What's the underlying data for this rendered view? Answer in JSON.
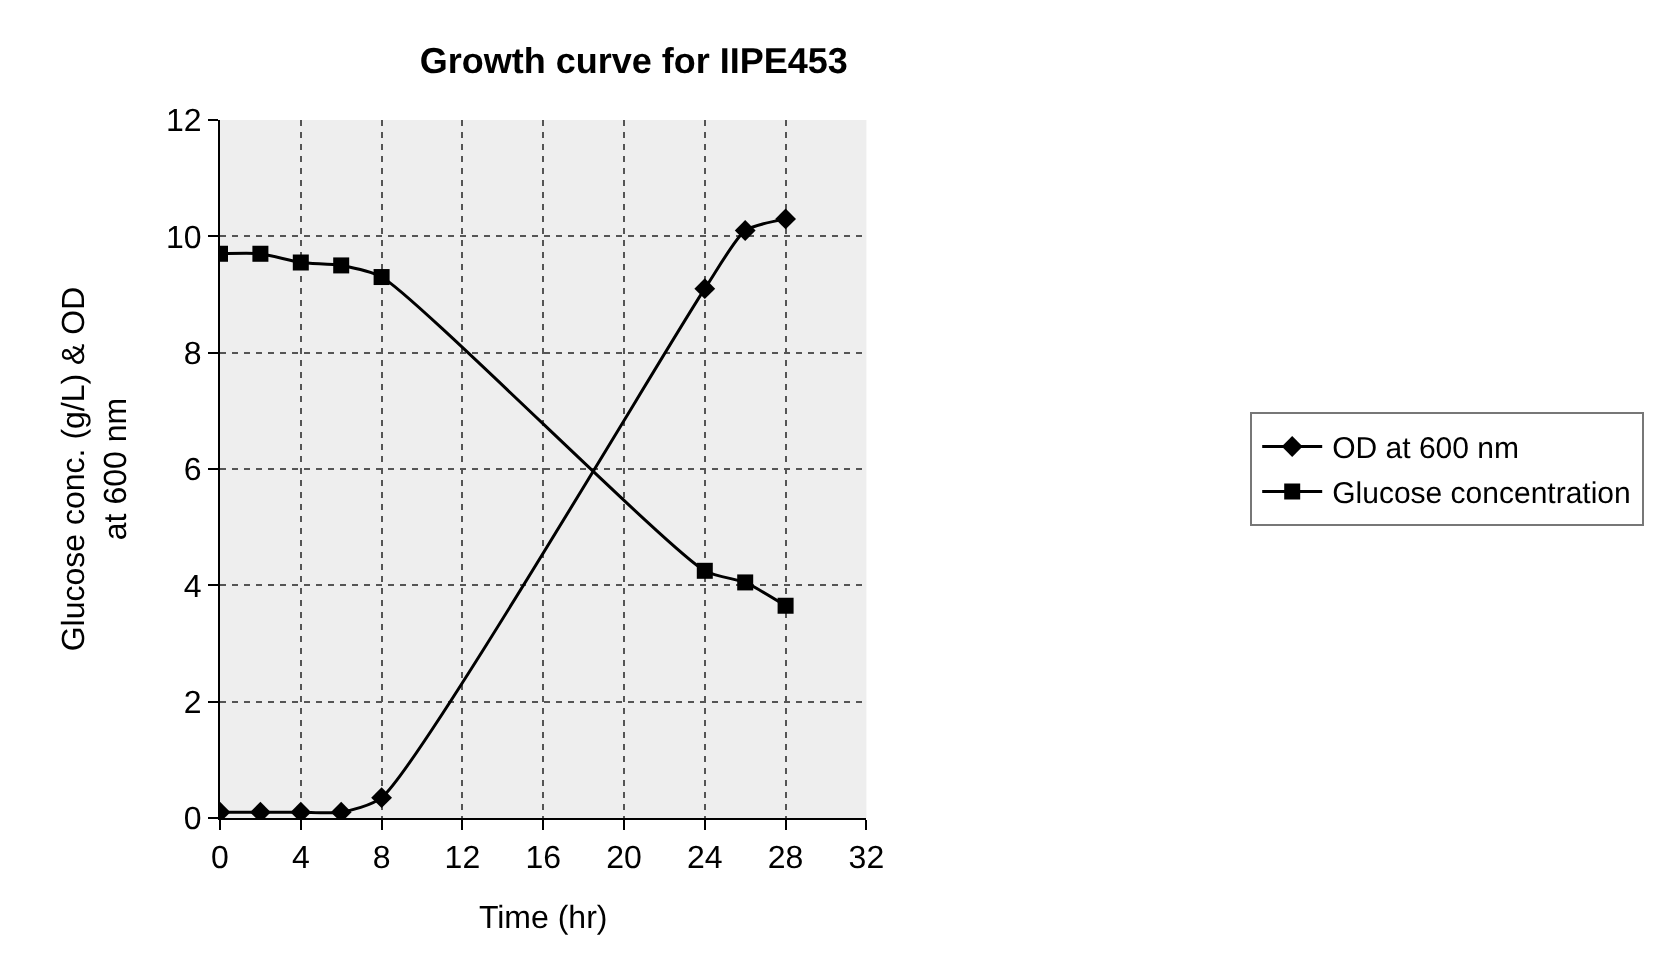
{
  "chart_data": {
    "type": "line",
    "title": "Growth curve for IIPE453",
    "xlabel": "Time (hr)",
    "ylabel": "Glucose conc. (g/L) & OD\nat 600 nm",
    "x": [
      0,
      2,
      4,
      6,
      8,
      24,
      26,
      28
    ],
    "series": [
      {
        "name": "OD at 600 nm",
        "color": "#000000",
        "marker": "diamond",
        "values": [
          0.1,
          0.1,
          0.1,
          0.1,
          0.35,
          9.1,
          10.1,
          10.3
        ]
      },
      {
        "name": "Glucose concentration",
        "color": "#000000",
        "marker": "square",
        "values": [
          9.7,
          9.7,
          9.55,
          9.5,
          9.3,
          4.25,
          4.05,
          3.65
        ]
      }
    ],
    "xlim": [
      0,
      32
    ],
    "xticks": [
      0,
      4,
      8,
      12,
      16,
      20,
      24,
      28,
      32
    ],
    "ylim": [
      0,
      12
    ],
    "yticks": [
      0,
      2,
      4,
      6,
      8,
      10,
      12
    ],
    "grid": true,
    "legend": "right",
    "line_style": "solid"
  }
}
